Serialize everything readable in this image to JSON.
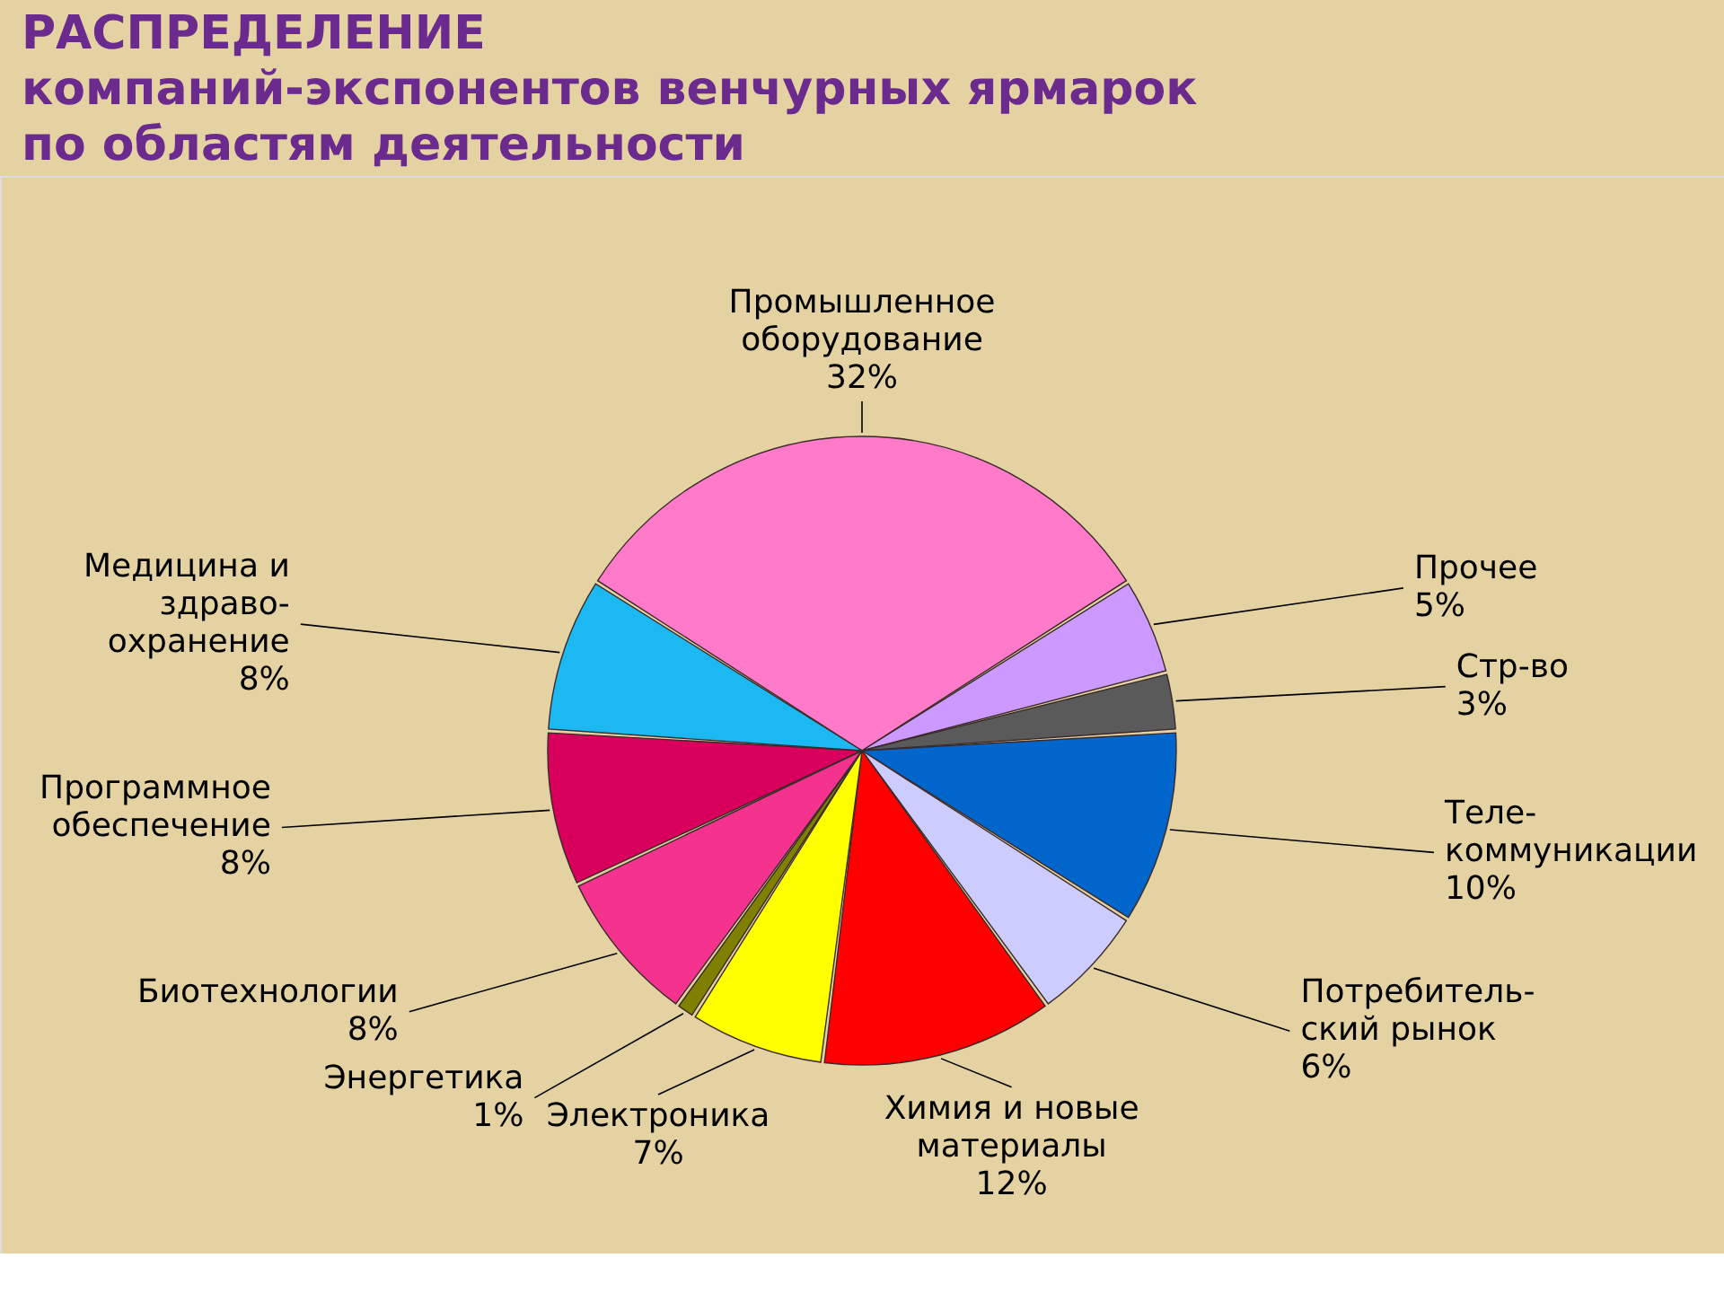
{
  "chart_data": {
    "type": "pie",
    "title": "РАСПРЕДЕЛЕНИЕ\nкомпаний-экспонентов венчурных ярмарок\nпо областям деятельности",
    "categories": [
      "Промышленное\nоборудование",
      "Прочее",
      "Стр-во",
      "Теле-\nкоммуникации",
      "Потребитель-\nский рынок",
      "Химия и новые\nматериалы",
      "Электроника",
      "Энергетика",
      "Биотехнологии",
      "Программное\nобеспечение",
      "Медицина и\nздраво-\nохранение"
    ],
    "values": [
      32,
      5,
      3,
      10,
      6,
      12,
      7,
      1,
      8,
      8,
      8
    ],
    "value_labels": [
      "32%",
      "5%",
      "3%",
      "10%",
      "6%",
      "12%",
      "7%",
      "1%",
      "8%",
      "8%",
      "8%"
    ],
    "colors": [
      "#ff7ac8",
      "#cc99ff",
      "#5a5a5a",
      "#0066cc",
      "#ccccff",
      "#ff0000",
      "#ffff00",
      "#808000",
      "#f5338f",
      "#d8005c",
      "#1cb8f2"
    ]
  }
}
